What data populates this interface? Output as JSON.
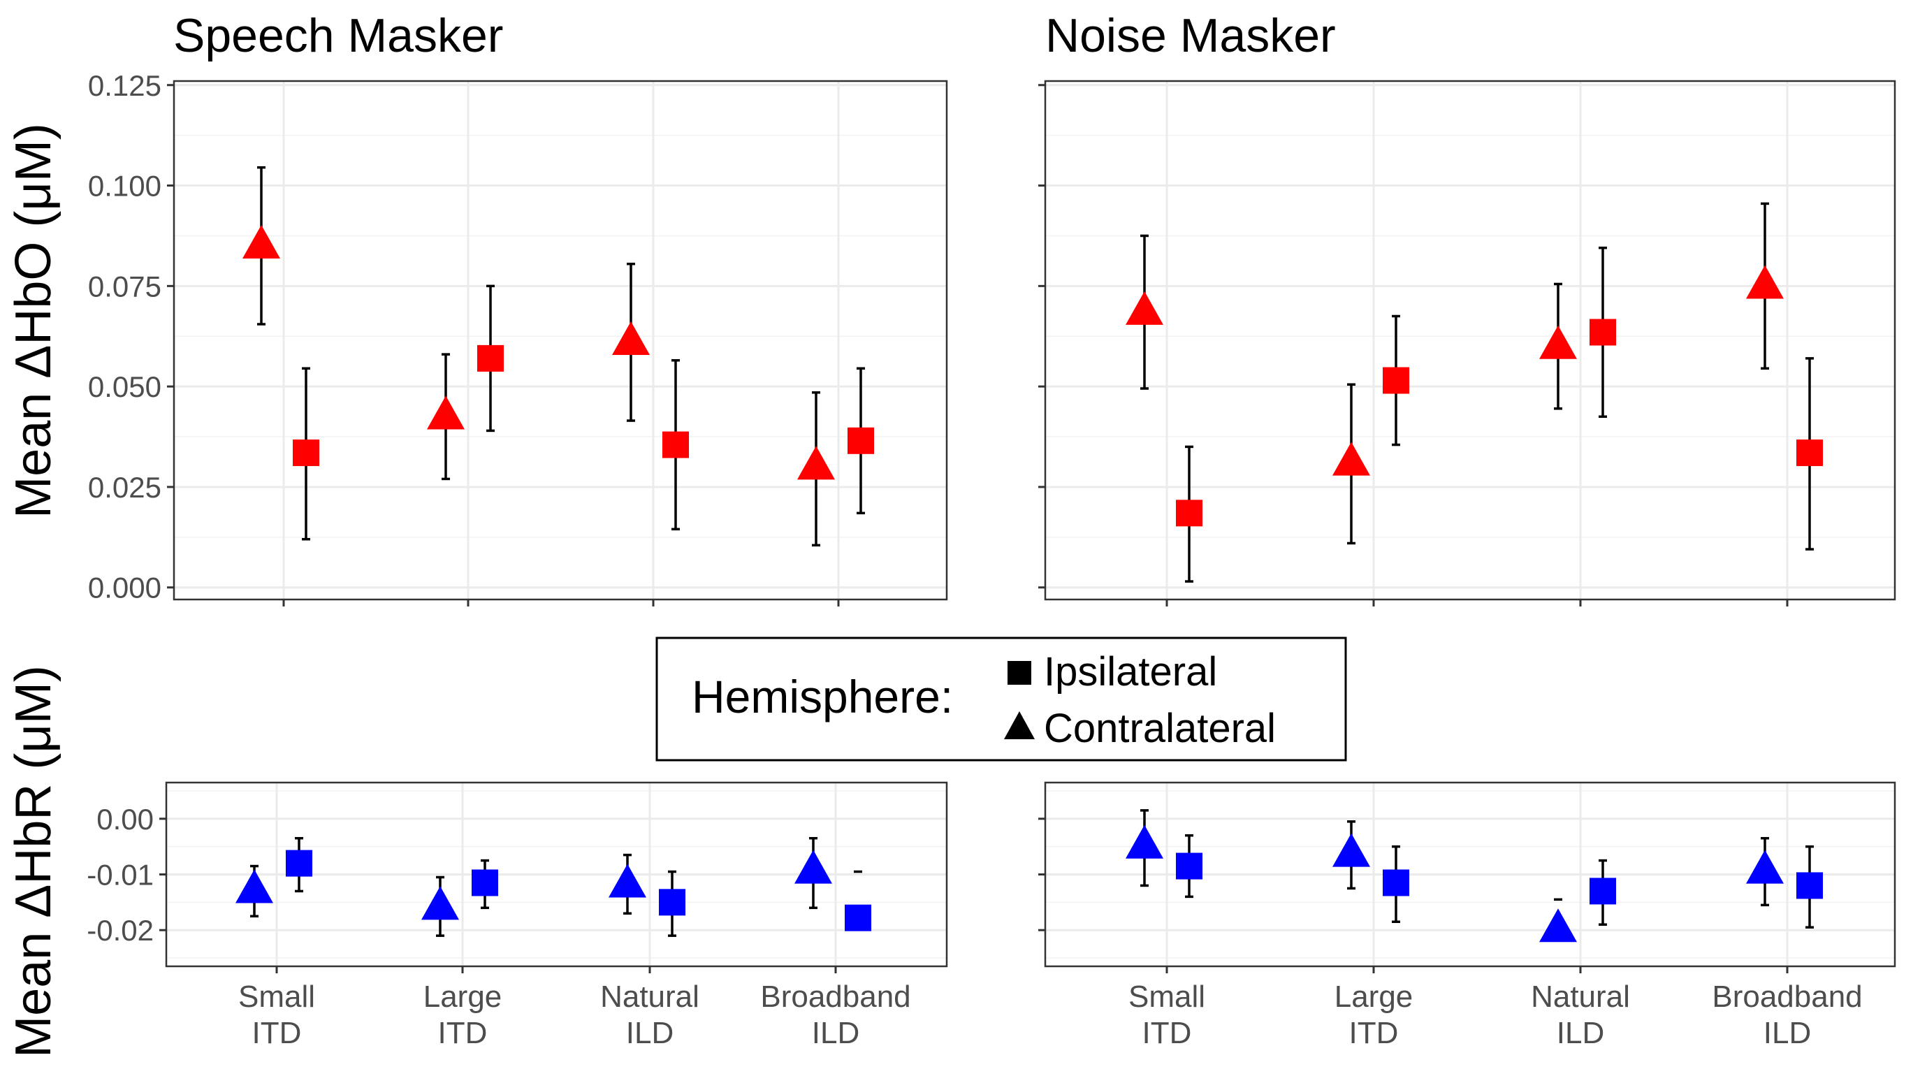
{
  "chart_data": [
    {
      "type": "scatter",
      "panel": "hbo-speech",
      "title": "Speech Masker",
      "ylabel": "Mean ΔHbO (μM)",
      "ylim": [
        -0.003,
        0.126
      ],
      "yticks": [
        0.0,
        0.025,
        0.05,
        0.075,
        0.1,
        0.125
      ],
      "ytick_labels": [
        "0.000",
        "0.025",
        "0.050",
        "0.075",
        "0.100",
        "0.125"
      ],
      "categories": [
        "Small ITD",
        "Large ITD",
        "Natural ILD",
        "Broadband ILD"
      ],
      "color": "#ff0000",
      "series": [
        {
          "name": "Contralateral",
          "values": [
            0.0855,
            0.043,
            0.0615,
            0.0305
          ],
          "err_low": [
            0.0655,
            0.027,
            0.0415,
            0.0105
          ],
          "err_high": [
            0.1045,
            0.058,
            0.0805,
            0.0485
          ]
        },
        {
          "name": "Ipsilateral",
          "values": [
            0.0335,
            0.057,
            0.0355,
            0.0365
          ],
          "err_low": [
            0.012,
            0.039,
            0.0145,
            0.0185
          ],
          "err_high": [
            0.0545,
            0.075,
            0.0565,
            0.0545
          ]
        }
      ]
    },
    {
      "type": "scatter",
      "panel": "hbo-noise",
      "title": "Noise Masker",
      "ylim": [
        -0.003,
        0.126
      ],
      "categories": [
        "Small ITD",
        "Large ITD",
        "Natural ILD",
        "Broadband ILD"
      ],
      "color": "#ff0000",
      "series": [
        {
          "name": "Contralateral",
          "values": [
            0.069,
            0.0315,
            0.0605,
            0.0755
          ],
          "err_low": [
            0.0495,
            0.011,
            0.0445,
            0.0545
          ],
          "err_high": [
            0.0875,
            0.0505,
            0.0755,
            0.0955
          ]
        },
        {
          "name": "Ipsilateral",
          "values": [
            0.0185,
            0.0515,
            0.0635,
            0.0335
          ],
          "err_low": [
            0.0015,
            0.0355,
            0.0425,
            0.0095
          ],
          "err_high": [
            0.035,
            0.0675,
            0.0845,
            0.057
          ]
        }
      ]
    },
    {
      "type": "scatter",
      "panel": "hbr-speech",
      "ylabel": "Mean ΔHbR (μM)",
      "ylim": [
        -0.0265,
        0.0065
      ],
      "yticks": [
        0.0,
        -0.01,
        -0.02
      ],
      "ytick_labels": [
        "0.00",
        "-0.01",
        "-0.02"
      ],
      "categories": [
        "Small ITD",
        "Large ITD",
        "Natural ILD",
        "Broadband ILD"
      ],
      "xtick_labels": [
        [
          "Small",
          "ITD"
        ],
        [
          "Large",
          "ITD"
        ],
        [
          "Natural",
          "ILD"
        ],
        [
          "Broadband",
          "ILD"
        ]
      ],
      "color": "#0000ff",
      "series": [
        {
          "name": "Contralateral",
          "values": [
            -0.0125,
            -0.0155,
            -0.0115,
            -0.009
          ],
          "err_low": [
            -0.0175,
            -0.021,
            -0.017,
            -0.016
          ],
          "err_high": [
            -0.0085,
            -0.0105,
            -0.0065,
            -0.0035
          ]
        },
        {
          "name": "Ipsilateral",
          "values": [
            -0.008,
            -0.0115,
            -0.015,
            -0.0178
          ],
          "err_low": [
            -0.013,
            -0.016,
            -0.021,
            null
          ],
          "err_high": [
            -0.0035,
            -0.0075,
            -0.0095,
            -0.0095
          ]
        }
      ]
    },
    {
      "type": "scatter",
      "panel": "hbr-noise",
      "ylim": [
        -0.0265,
        0.0065
      ],
      "categories": [
        "Small ITD",
        "Large ITD",
        "Natural ILD",
        "Broadband ILD"
      ],
      "xtick_labels": [
        [
          "Small",
          "ITD"
        ],
        [
          "Large",
          "ITD"
        ],
        [
          "Natural",
          "ILD"
        ],
        [
          "Broadband",
          "ILD"
        ]
      ],
      "color": "#0000ff",
      "series": [
        {
          "name": "Contralateral",
          "values": [
            -0.0045,
            -0.006,
            -0.0195,
            -0.009
          ],
          "err_low": [
            -0.012,
            -0.0125,
            null,
            -0.0155
          ],
          "err_high": [
            0.0015,
            -0.0005,
            -0.0145,
            -0.0035
          ]
        },
        {
          "name": "Ipsilateral",
          "values": [
            -0.0085,
            -0.0115,
            -0.013,
            -0.012
          ],
          "err_low": [
            -0.014,
            -0.0185,
            -0.019,
            -0.0195
          ],
          "err_high": [
            -0.003,
            -0.005,
            -0.0075,
            -0.005
          ]
        }
      ]
    }
  ],
  "legend": {
    "title": "Hemisphere:",
    "items": [
      {
        "label": "Ipsilateral",
        "shape": "square"
      },
      {
        "label": "Contralateral",
        "shape": "triangle"
      }
    ]
  }
}
